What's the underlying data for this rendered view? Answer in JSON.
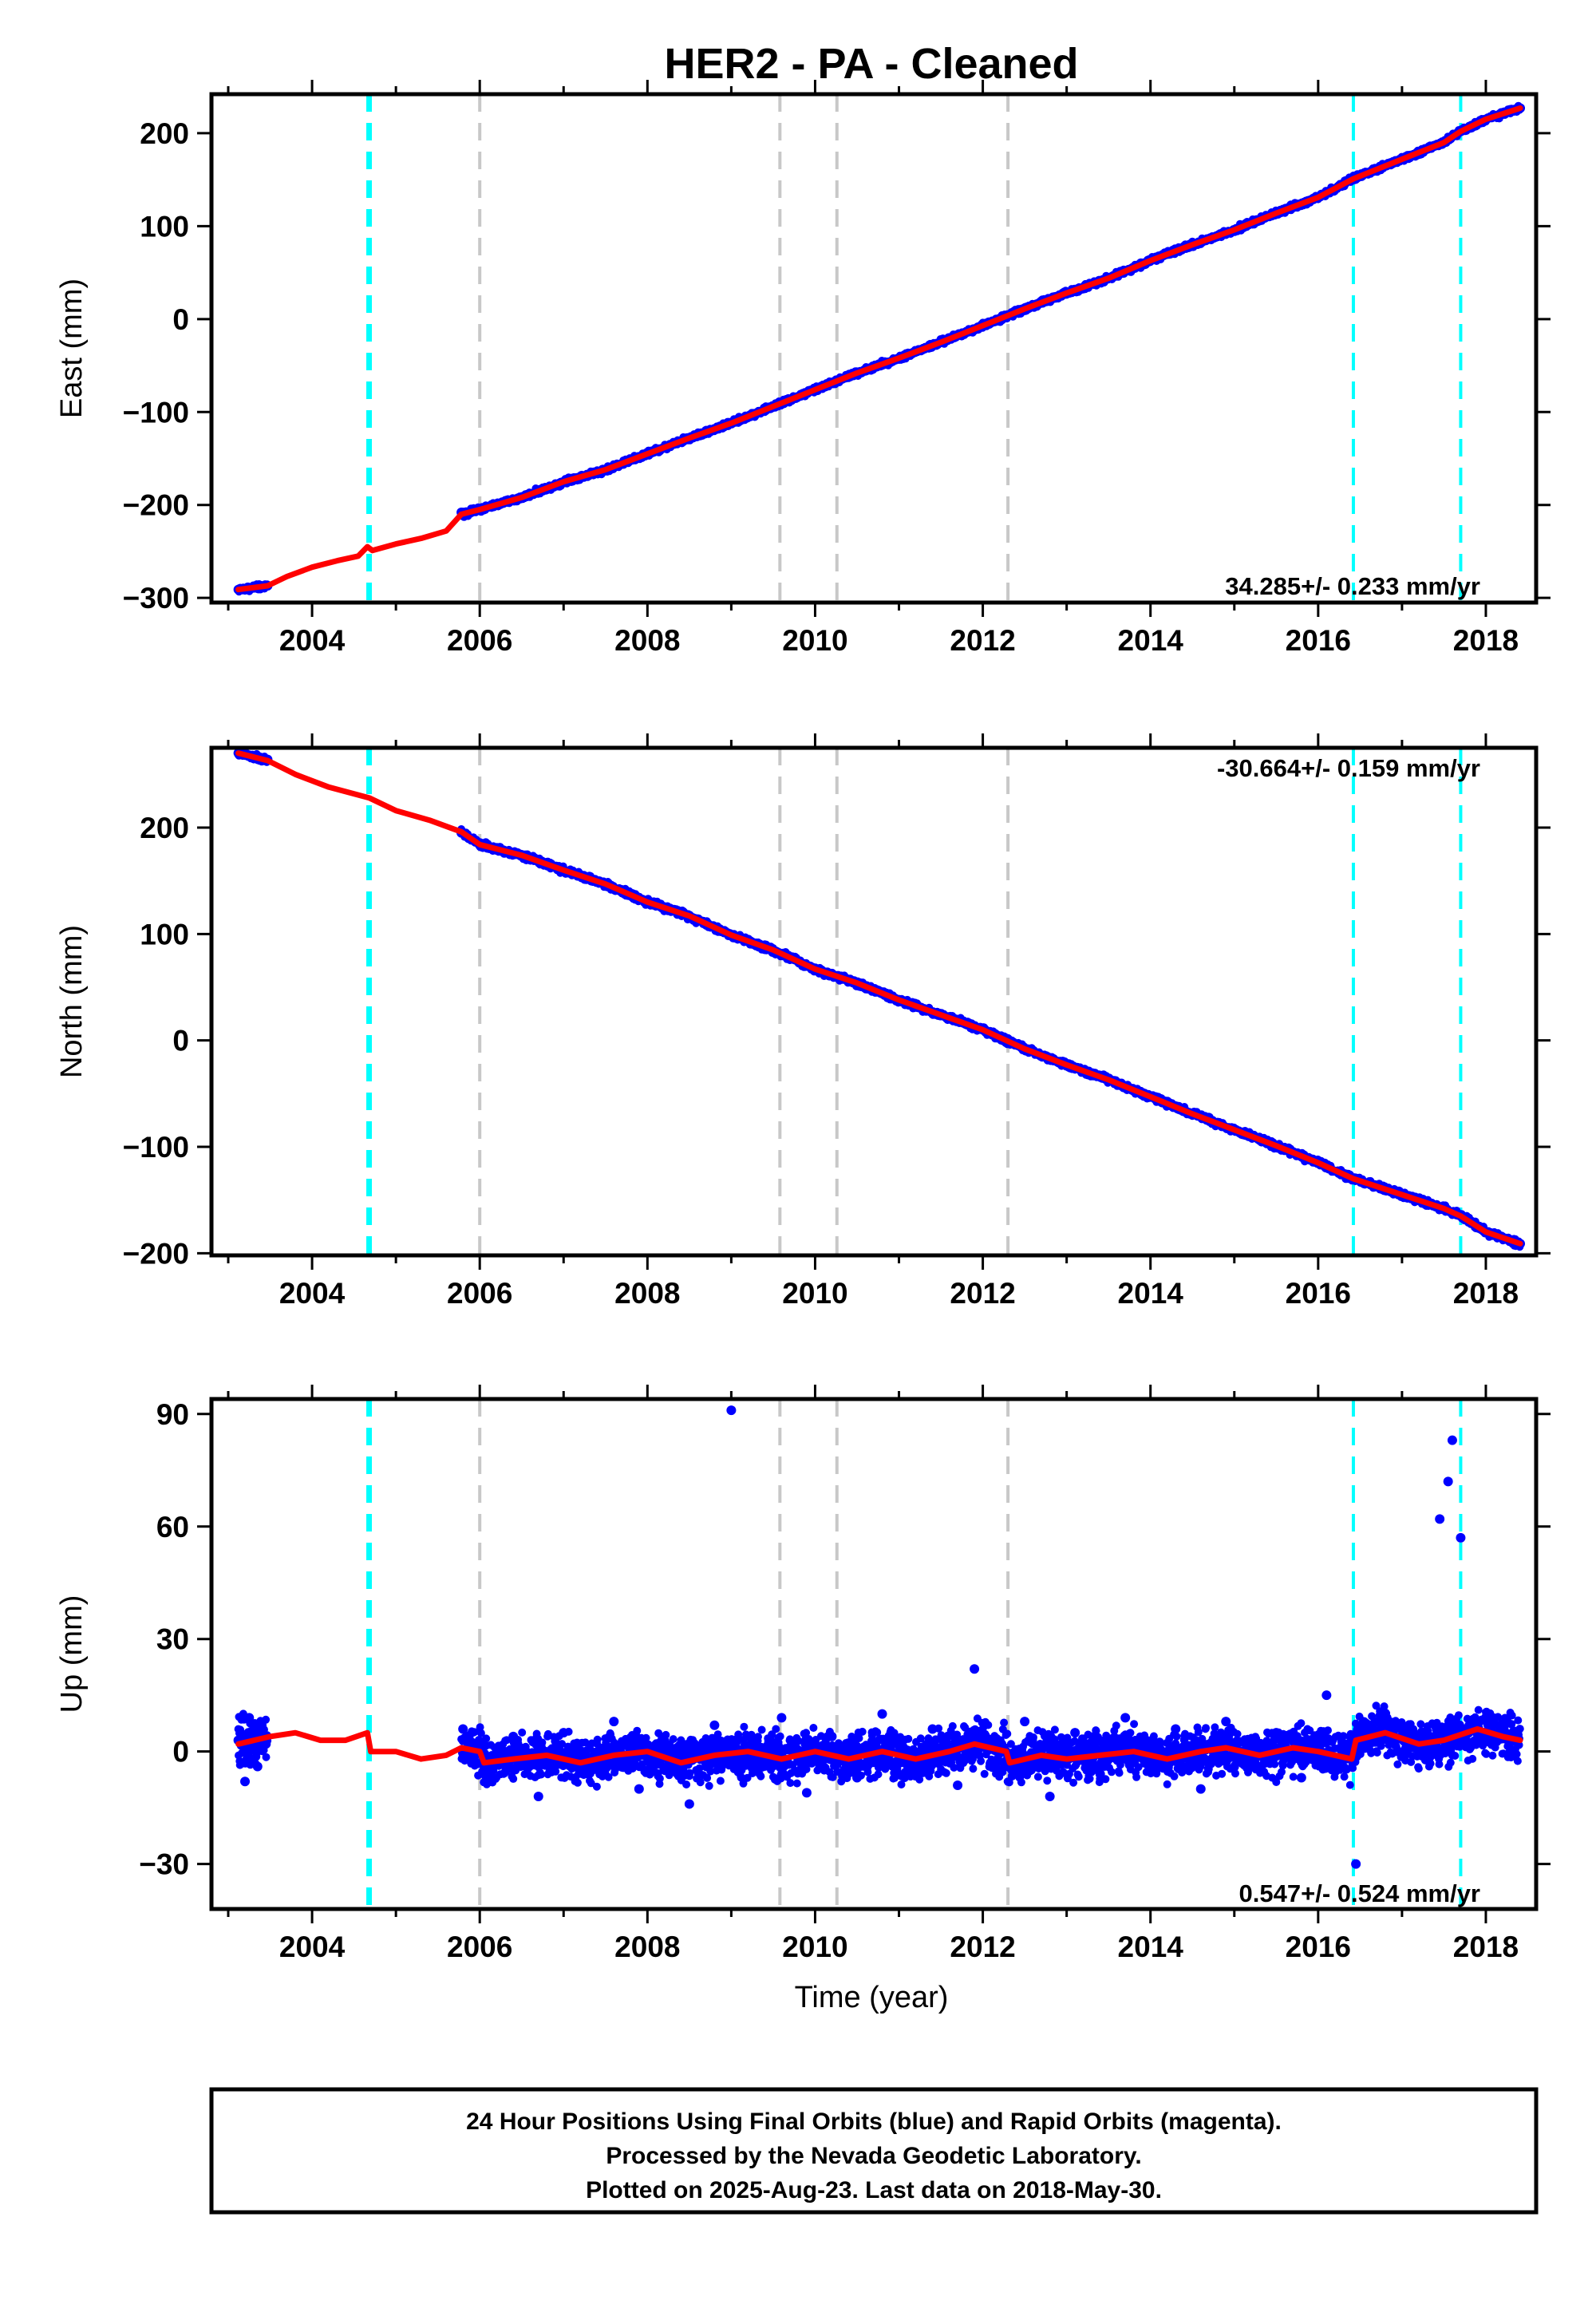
{
  "title": "HER2  - PA - Cleaned",
  "colors": {
    "observations": "#0000ff",
    "model": "#ff0000",
    "equipment_change": "#00ffff",
    "earthquake": "#c8c8c8",
    "axes": "#000000"
  },
  "time_axis": {
    "label": "Time (year)",
    "ticks": [
      "2004",
      "2006",
      "2008",
      "2010",
      "2012",
      "2014",
      "2016",
      "2018"
    ],
    "range": [
      2002.8,
      2018.6
    ]
  },
  "event_markers": {
    "cyan": [
      2004.68,
      2016.42,
      2017.7
    ],
    "gray": [
      2006.0,
      2009.58,
      2010.26,
      2012.3
    ]
  },
  "chart_data": [
    {
      "type": "scatter",
      "panel": "east",
      "ylabel": "East (mm)",
      "ylim": [
        -305,
        242
      ],
      "yticks": [
        "200",
        "100",
        "0",
        "−100",
        "−200",
        "−300"
      ],
      "ytick_values": [
        200,
        100,
        0,
        -100,
        -200,
        -300
      ],
      "rate_label": "34.285+/- 0.233 mm/yr",
      "series": [
        {
          "style": "points",
          "x": [
            2003.12,
            2003.25,
            2003.38,
            2003.47,
            2005.78,
            2006.0,
            2006.5,
            2007.0,
            2007.5,
            2008.0,
            2008.5,
            2009.0,
            2009.5,
            2010.0,
            2010.5,
            2011.0,
            2011.5,
            2012.0,
            2012.5,
            2013.0,
            2013.5,
            2014.0,
            2014.5,
            2015.0,
            2015.5,
            2016.0,
            2016.42,
            2017.0,
            2017.5,
            2017.7,
            2018.0,
            2018.41
          ],
          "y": [
            -291,
            -290,
            -290,
            -287,
            -208,
            -205,
            -192,
            -175,
            -162,
            -145,
            -128,
            -112,
            -94,
            -76,
            -58,
            -42,
            -25,
            -7,
            11,
            28,
            44,
            63,
            80,
            96,
            114,
            131,
            151,
            172,
            190,
            202,
            215,
            227
          ]
        },
        {
          "style": "line",
          "x": [
            2003.12,
            2003.47,
            2003.7,
            2004.0,
            2004.3,
            2004.55,
            2004.66,
            2004.72,
            2005.0,
            2005.3,
            2005.6,
            2005.78,
            2006.0,
            2006.5,
            2007.0,
            2007.5,
            2008.0,
            2008.5,
            2009.0,
            2009.5,
            2010.0,
            2010.5,
            2011.0,
            2011.5,
            2012.0,
            2012.5,
            2013.0,
            2013.5,
            2014.0,
            2014.5,
            2015.0,
            2015.5,
            2016.0,
            2016.42,
            2017.0,
            2017.5,
            2017.7,
            2018.0,
            2018.41
          ],
          "y": [
            -291,
            -287,
            -277,
            -267,
            -260,
            -255,
            -245,
            -249,
            -242,
            -236,
            -228,
            -210,
            -205,
            -192,
            -175,
            -162,
            -145,
            -128,
            -112,
            -94,
            -76,
            -58,
            -42,
            -25,
            -7,
            11,
            28,
            44,
            63,
            80,
            96,
            114,
            131,
            151,
            172,
            190,
            202,
            215,
            227
          ]
        }
      ]
    },
    {
      "type": "scatter",
      "panel": "north",
      "ylabel": "North (mm)",
      "ylim": [
        -202,
        275
      ],
      "yticks": [
        "200",
        "100",
        "0",
        "−100",
        "−200"
      ],
      "ytick_values": [
        200,
        100,
        0,
        -100,
        -200
      ],
      "rate_label": "-30.664+/- 0.159 mm/yr",
      "series": [
        {
          "style": "points",
          "x": [
            2003.12,
            2003.25,
            2003.38,
            2003.47,
            2005.78,
            2006.0,
            2006.5,
            2007.0,
            2007.5,
            2008.0,
            2008.5,
            2009.0,
            2009.5,
            2010.0,
            2010.5,
            2011.0,
            2011.5,
            2012.0,
            2012.5,
            2013.0,
            2013.5,
            2014.0,
            2014.5,
            2015.0,
            2015.5,
            2016.0,
            2016.42,
            2017.0,
            2017.5,
            2017.7,
            2018.0,
            2018.41
          ],
          "y": [
            270,
            268,
            266,
            264,
            195,
            184,
            174,
            160,
            147,
            130,
            117,
            99,
            85,
            67,
            54,
            38,
            24,
            10,
            -8,
            -23,
            -37,
            -53,
            -69,
            -84,
            -99,
            -115,
            -130,
            -145,
            -158,
            -165,
            -180,
            -191
          ]
        },
        {
          "style": "line",
          "x": [
            2003.12,
            2003.47,
            2003.8,
            2004.2,
            2004.68,
            2005.0,
            2005.4,
            2005.78,
            2006.0,
            2006.5,
            2007.0,
            2007.5,
            2008.0,
            2008.5,
            2009.0,
            2009.5,
            2010.0,
            2010.5,
            2011.0,
            2011.5,
            2012.0,
            2012.5,
            2013.0,
            2013.5,
            2014.0,
            2014.5,
            2015.0,
            2015.5,
            2016.0,
            2016.42,
            2017.0,
            2017.5,
            2017.7,
            2018.0,
            2018.41
          ],
          "y": [
            270,
            263,
            250,
            238,
            228,
            216,
            207,
            196,
            184,
            174,
            160,
            147,
            130,
            117,
            99,
            85,
            67,
            54,
            38,
            24,
            10,
            -8,
            -23,
            -37,
            -53,
            -69,
            -84,
            -99,
            -115,
            -130,
            -145,
            -158,
            -165,
            -180,
            -191
          ]
        }
      ]
    },
    {
      "type": "scatter",
      "panel": "up",
      "ylabel": "Up (mm)",
      "ylim": [
        -42,
        94
      ],
      "yticks": [
        "90",
        "60",
        "30",
        "0",
        "−30"
      ],
      "ytick_values": [
        90,
        60,
        30,
        0,
        -30
      ],
      "rate_label": "0.547+/- 0.524 mm/yr",
      "series": [
        {
          "style": "points",
          "x": [
            2003.12,
            2003.2,
            2003.25,
            2003.3,
            2003.35,
            2003.4,
            2003.45,
            2005.8,
            2006.1,
            2006.4,
            2006.7,
            2007.0,
            2007.3,
            2007.6,
            2007.9,
            2008.2,
            2008.5,
            2008.8,
            2009.0,
            2009.3,
            2009.6,
            2009.9,
            2010.2,
            2010.5,
            2010.8,
            2011.1,
            2011.4,
            2011.7,
            2011.9,
            2012.2,
            2012.5,
            2012.8,
            2013.1,
            2013.4,
            2013.7,
            2014.0,
            2014.3,
            2014.6,
            2014.9,
            2015.2,
            2015.5,
            2015.8,
            2016.1,
            2016.4,
            2016.45,
            2016.7,
            2017.0,
            2017.3,
            2017.45,
            2017.55,
            2017.6,
            2017.7,
            2018.0,
            2018.3
          ],
          "y": [
            3,
            -8,
            9,
            5,
            -4,
            7,
            2,
            6,
            -3,
            4,
            -12,
            5,
            -6,
            8,
            -10,
            3,
            -14,
            7,
            91,
            -5,
            9,
            -11,
            4,
            -7,
            10,
            -3,
            6,
            -9,
            22,
            -5,
            8,
            -12,
            5,
            -6,
            9,
            -4,
            6,
            -10,
            8,
            -3,
            5,
            -7,
            15,
            -2,
            -30,
            8,
            4,
            -1,
            62,
            72,
            83,
            57,
            9,
            3
          ]
        },
        {
          "style": "line",
          "x": [
            2003.12,
            2003.5,
            2003.8,
            2004.1,
            2004.4,
            2004.66,
            2004.7,
            2005.0,
            2005.3,
            2005.6,
            2005.78,
            2006.0,
            2006.05,
            2006.4,
            2006.8,
            2007.2,
            2007.6,
            2008.0,
            2008.4,
            2008.8,
            2009.2,
            2009.6,
            2010.0,
            2010.4,
            2010.8,
            2011.2,
            2011.6,
            2011.9,
            2012.28,
            2012.32,
            2012.7,
            2013.0,
            2013.4,
            2013.8,
            2014.2,
            2014.6,
            2014.9,
            2015.3,
            2015.7,
            2016.0,
            2016.4,
            2016.45,
            2016.8,
            2017.2,
            2017.5,
            2017.9,
            2018.2,
            2018.41
          ],
          "y": [
            2,
            4,
            5,
            3,
            3,
            5,
            0,
            0,
            -2,
            -1,
            1,
            0,
            -3,
            -2,
            -1,
            -3,
            -1,
            0,
            -3,
            -1,
            0,
            -2,
            0,
            -2,
            0,
            -2,
            0,
            2,
            0,
            -3,
            -1,
            -2,
            -1,
            0,
            -2,
            0,
            1,
            -1,
            1,
            0,
            -2,
            3,
            5,
            2,
            3,
            6,
            4,
            3
          ]
        }
      ]
    }
  ],
  "footer": {
    "line1": "24 Hour Positions Using Final Orbits (blue) and Rapid Orbits (magenta).",
    "line2": "Processed by the Nevada Geodetic Laboratory.",
    "line3": "Plotted on 2025-Aug-23. Last data on 2018-May-30."
  }
}
